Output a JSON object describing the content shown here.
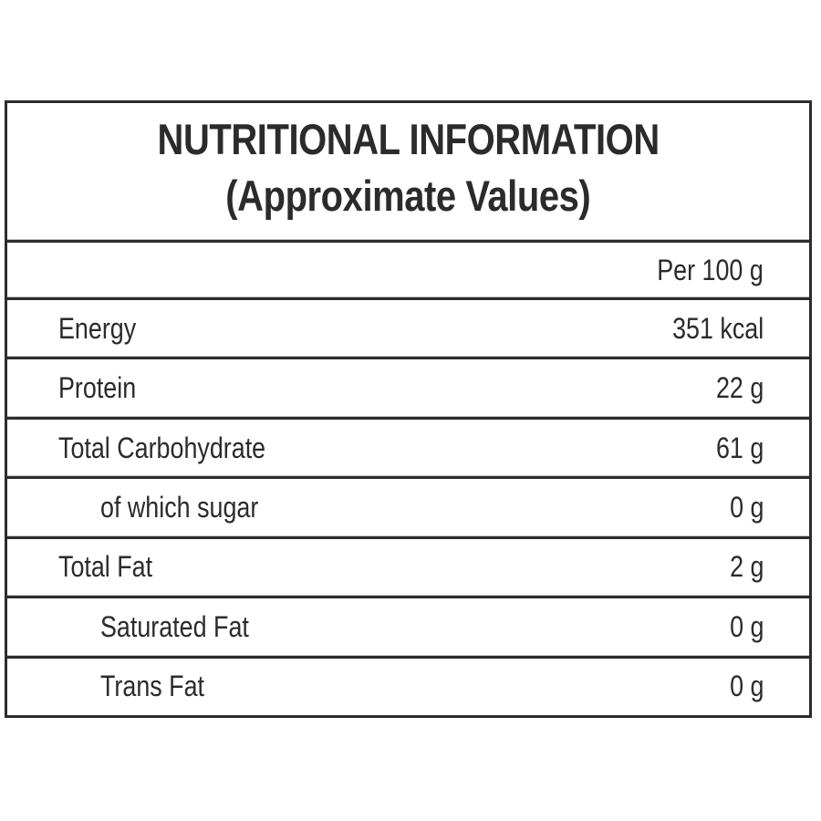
{
  "colors": {
    "text": "#2b2b2b",
    "border": "#2c2c2c",
    "background": "#ffffff",
    "divider_highlight": "#c4c4c4"
  },
  "label": {
    "title_line1": "NUTRITIONAL INFORMATION",
    "title_line2": "(Approximate Values)",
    "column_header": "Per 100 g",
    "rows": [
      {
        "name": "Energy",
        "value": "351 kcal",
        "indent": false
      },
      {
        "name": "Protein",
        "value": "22 g",
        "indent": false
      },
      {
        "name": "Total Carbohydrate",
        "value": "61 g",
        "indent": false
      },
      {
        "name": "of which sugar",
        "value": "0 g",
        "indent": true
      },
      {
        "name": "Total Fat",
        "value": "2 g",
        "indent": false
      },
      {
        "name": "Saturated Fat",
        "value": "0 g",
        "indent": true
      },
      {
        "name": "Trans Fat",
        "value": "0 g",
        "indent": true
      }
    ]
  }
}
